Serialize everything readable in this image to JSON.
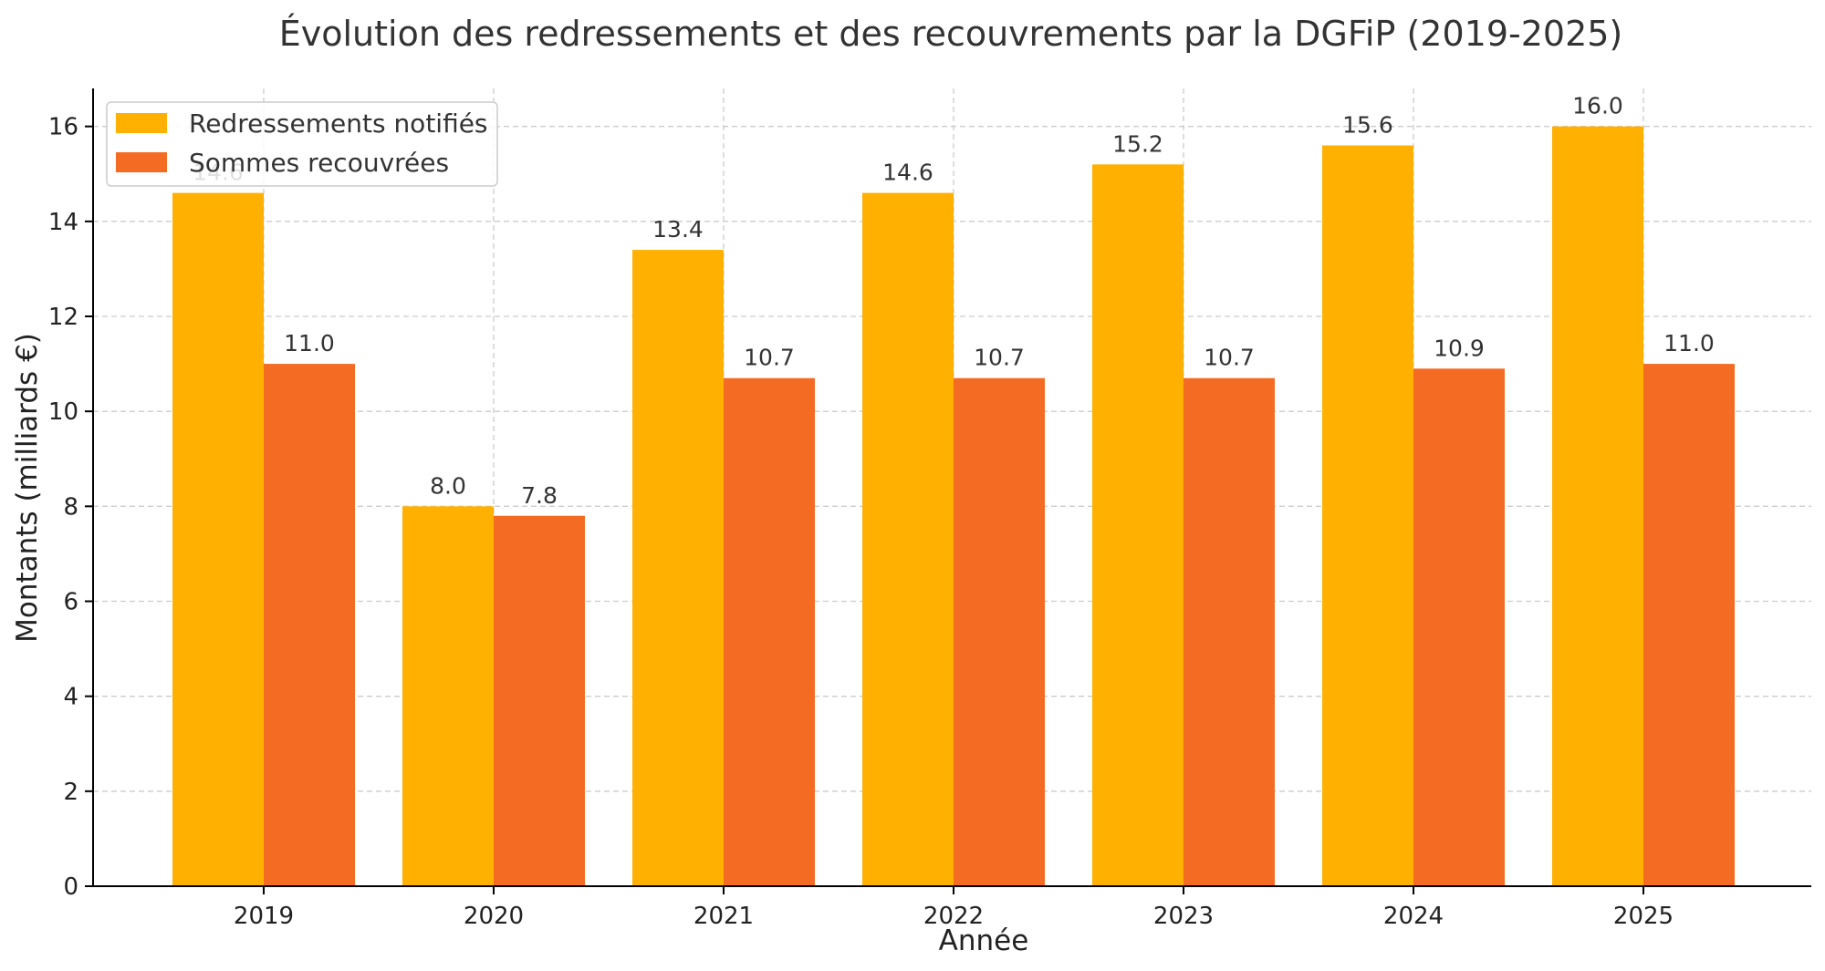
{
  "chart_data": {
    "type": "bar",
    "title": "Évolution des redressements et des recouvrements par la DGFiP (2019-2025)",
    "xlabel": "Année",
    "ylabel": "Montants (milliards €)",
    "categories": [
      "2019",
      "2020",
      "2021",
      "2022",
      "2023",
      "2024",
      "2025"
    ],
    "ylim": [
      0,
      16.8
    ],
    "yticks": [
      0,
      2,
      4,
      6,
      8,
      10,
      12,
      14,
      16
    ],
    "grid": true,
    "legend_position": "top-left",
    "series": [
      {
        "name": "Redressements notifiés",
        "color": "#FFB000",
        "values": [
          14.6,
          8.0,
          13.4,
          14.6,
          15.2,
          15.6,
          16.0
        ],
        "labels": [
          "14.6",
          "8.0",
          "13.4",
          "14.6",
          "15.2",
          "15.6",
          "16.0"
        ]
      },
      {
        "name": "Sommes recouvrées",
        "color": "#F46B24",
        "values": [
          11.0,
          7.8,
          10.7,
          10.7,
          10.7,
          10.9,
          11.0
        ],
        "labels": [
          "11.0",
          "7.8",
          "10.7",
          "10.7",
          "10.7",
          "10.9",
          "11.0"
        ]
      }
    ]
  }
}
